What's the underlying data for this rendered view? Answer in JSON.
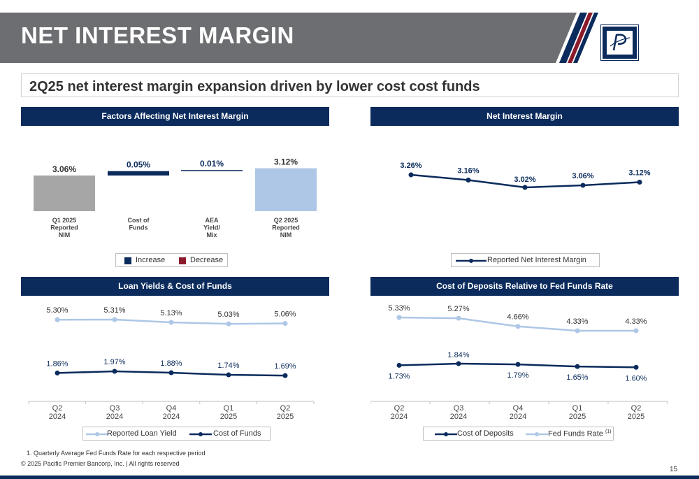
{
  "header": {
    "title": "NET INTEREST MARGIN",
    "subtitle": "2Q25 net interest margin expansion driven by lower cost cost funds"
  },
  "panels": {
    "factors": "Factors Affecting Net Interest Margin",
    "nim": "Net Interest Margin",
    "loan": "Loan Yields & Cost of Funds",
    "deposits": "Cost of Deposits Relative to Fed Funds Rate"
  },
  "colors": {
    "navy": "#0b2b5c",
    "gray": "#a6a6a6",
    "light_blue": "#aec7e6",
    "red": "#8b1a2b",
    "header_gray": "#6d6e71"
  },
  "chart_data": [
    {
      "type": "bar",
      "subtype": "waterfall",
      "categories": [
        "Q1 2025\nReported\nNIM",
        "Cost of\nFunds",
        "AEA\nYield/\nMix",
        "Q2 2025\nReported\nNIM"
      ],
      "values": [
        3.06,
        0.05,
        0.01,
        3.12
      ],
      "labels": [
        "3.06%",
        "0.05%",
        "0.01%",
        "3.12%"
      ],
      "kinds": [
        "total",
        "increase",
        "increase",
        "total"
      ],
      "legend": [
        "Increase",
        "Decrease"
      ],
      "legend_placement": "bottom"
    },
    {
      "type": "line",
      "series": [
        {
          "name": "Reported Net Interest Margin",
          "values": [
            3.26,
            3.16,
            3.02,
            3.06,
            3.12
          ],
          "labels": [
            "3.26%",
            "3.16%",
            "3.02%",
            "3.06%",
            "3.12%"
          ]
        }
      ],
      "legend_placement": "bottom"
    },
    {
      "type": "line",
      "categories": [
        "Q2\n2024",
        "Q3\n2024",
        "Q4\n2024",
        "Q1\n2025",
        "Q2\n2025"
      ],
      "series": [
        {
          "name": "Reported Loan Yield",
          "values": [
            5.3,
            5.31,
            5.13,
            5.03,
            5.06
          ],
          "labels": [
            "5.30%",
            "5.31%",
            "5.13%",
            "5.03%",
            "5.06%"
          ]
        },
        {
          "name": "Cost of Funds",
          "values": [
            1.86,
            1.97,
            1.88,
            1.74,
            1.69
          ],
          "labels": [
            "1.86%",
            "1.97%",
            "1.88%",
            "1.74%",
            "1.69%"
          ]
        }
      ],
      "legend_placement": "bottom"
    },
    {
      "type": "line",
      "categories": [
        "Q2\n2024",
        "Q3\n2024",
        "Q4\n2024",
        "Q1\n2025",
        "Q2\n2025"
      ],
      "series": [
        {
          "name": "Cost of Deposits",
          "values": [
            1.73,
            1.84,
            1.79,
            1.65,
            1.6
          ],
          "labels": [
            "1.73%",
            "1.84%",
            "1.79%",
            "1.65%",
            "1.60%"
          ]
        },
        {
          "name": "Fed Funds Rate",
          "superscript": "(1)",
          "values": [
            5.33,
            5.27,
            4.66,
            4.33,
            4.33
          ],
          "labels": [
            "5.33%",
            "5.27%",
            "4.66%",
            "4.33%",
            "4.33%"
          ]
        }
      ],
      "legend_placement": "bottom"
    }
  ],
  "footer": {
    "footnote": "1. Quarterly Average Fed Funds Rate for each respective period",
    "copyright": "© 2025 Pacific Premier Bancorp, Inc. | All rights reserved",
    "page": "15"
  }
}
